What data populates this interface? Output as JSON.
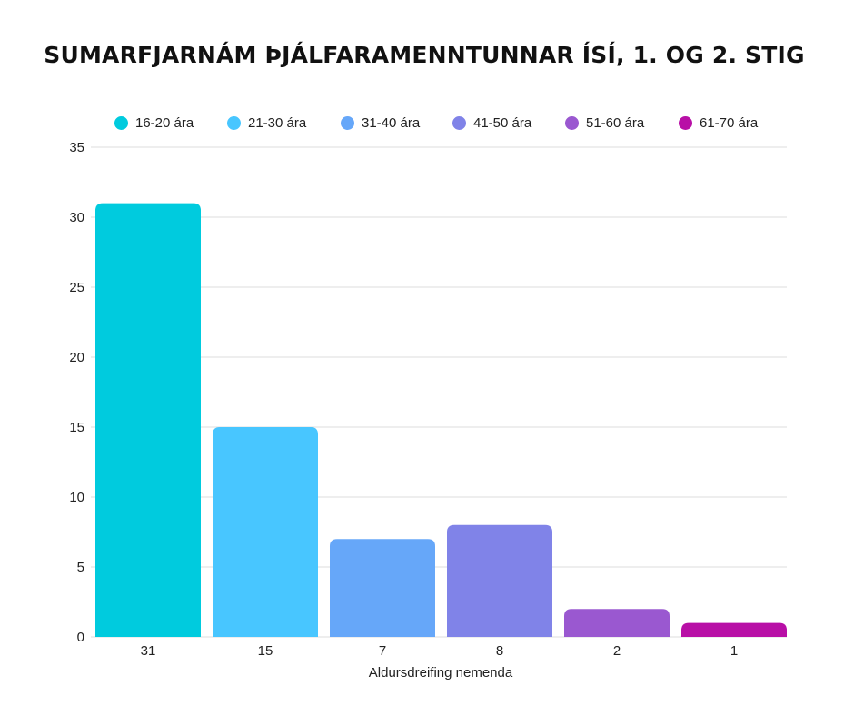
{
  "chart_data": {
    "type": "bar",
    "title": "SUMARFJARNÁM ÞJÁLFARAMENNTUNNAR ÍSÍ, 1. OG 2. STIG",
    "xlabel": "Aldursdreifing nemenda",
    "ylabel": "",
    "categories": [
      "31",
      "15",
      "7",
      "8",
      "2",
      "1"
    ],
    "series": [
      {
        "name": "16-20 ára",
        "values": [
          31,
          null,
          null,
          null,
          null,
          null
        ],
        "color": "#00CBDE"
      },
      {
        "name": "21-30 ára",
        "values": [
          null,
          15,
          null,
          null,
          null,
          null
        ],
        "color": "#48C6FF"
      },
      {
        "name": "31-40 ára",
        "values": [
          null,
          null,
          7,
          null,
          null,
          null
        ],
        "color": "#66A7F9"
      },
      {
        "name": "41-50 ára",
        "values": [
          null,
          null,
          null,
          8,
          null,
          null
        ],
        "color": "#8083E8"
      },
      {
        "name": "51-60 ára",
        "values": [
          null,
          null,
          null,
          null,
          2,
          null
        ],
        "color": "#9A58D0"
      },
      {
        "name": "61-70 ára",
        "values": [
          null,
          null,
          null,
          null,
          null,
          1
        ],
        "color": "#B80FA6"
      }
    ],
    "values": [
      31,
      15,
      7,
      8,
      2,
      1
    ],
    "ylim": [
      0,
      35
    ],
    "yticks": [
      0,
      5,
      10,
      15,
      20,
      25,
      30,
      35
    ],
    "grid": true,
    "legend_position": "top"
  }
}
